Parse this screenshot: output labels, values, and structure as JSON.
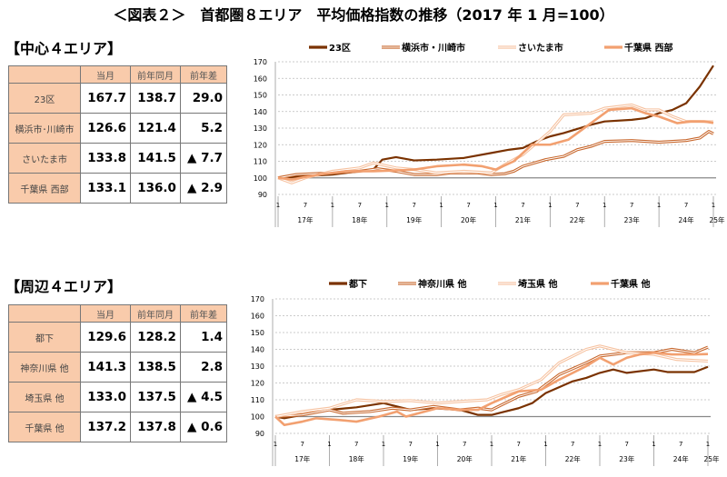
{
  "title": "＜図表２＞　首都圏８エリア　平均価格指数の推移（2017 年 1 月=100）",
  "sections": [
    {
      "heading": "【中心４エリア】",
      "table": {
        "headers": [
          "",
          "当月",
          "前年同月",
          "前年差"
        ],
        "rows": [
          [
            "23区",
            "167.7",
            "138.7",
            "29.0"
          ],
          [
            "横浜市･川崎市",
            "126.6",
            "121.4",
            "5.2"
          ],
          [
            "さいたま市",
            "133.8",
            "141.5",
            "▲ 7.7"
          ],
          [
            "千葉県 西部",
            "133.1",
            "136.0",
            "▲ 2.9"
          ]
        ]
      }
    },
    {
      "heading": "【周辺４エリア】",
      "table": {
        "headers": [
          "",
          "当月",
          "前年同月",
          "前年差"
        ],
        "rows": [
          [
            "都下",
            "129.6",
            "128.2",
            "1.4"
          ],
          [
            "神奈川県 他",
            "141.3",
            "138.5",
            "2.8"
          ],
          [
            "埼玉県 他",
            "133.0",
            "137.5",
            "▲ 4.5"
          ],
          [
            "千葉県 他",
            "137.2",
            "137.8",
            "▲ 0.6"
          ]
        ]
      }
    }
  ],
  "chart_data": [
    {
      "type": "line",
      "ylim": [
        90,
        170
      ],
      "yticks": [
        90,
        100,
        110,
        120,
        130,
        140,
        150,
        160,
        170
      ],
      "grid": true,
      "legend": "top",
      "x_month_labels": [
        "1",
        "7"
      ],
      "x_year_labels": [
        "17年",
        "18年",
        "19年",
        "20年",
        "21年",
        "22年",
        "23年",
        "24年",
        "25年"
      ],
      "x_range": [
        "2017-01",
        "2025-01"
      ],
      "series": [
        {
          "name": "23区",
          "color": "#7a3200",
          "style": "solid",
          "points": [
            [
              "2017-01",
              100
            ],
            [
              "2017-07",
              101
            ],
            [
              "2018-01",
              102
            ],
            [
              "2018-07",
              104
            ],
            [
              "2018-10",
              105
            ],
            [
              "2018-12",
              111
            ],
            [
              "2019-03",
              112.5
            ],
            [
              "2019-07",
              110.5
            ],
            [
              "2019-12",
              111
            ],
            [
              "2020-06",
              112
            ],
            [
              "2020-12",
              115
            ],
            [
              "2021-04",
              117
            ],
            [
              "2021-07",
              118
            ],
            [
              "2021-10",
              122
            ],
            [
              "2022-01",
              125
            ],
            [
              "2022-04",
              127
            ],
            [
              "2022-10",
              132
            ],
            [
              "2023-01",
              134
            ],
            [
              "2023-07",
              135
            ],
            [
              "2023-10",
              136
            ],
            [
              "2024-01",
              139
            ],
            [
              "2024-04",
              141
            ],
            [
              "2024-07",
              145
            ],
            [
              "2024-10",
              155
            ],
            [
              "2025-01",
              167.7
            ]
          ]
        },
        {
          "name": "横浜市・川崎市",
          "color": "#c8682e",
          "style": "double",
          "points": [
            [
              "2017-01",
              100
            ],
            [
              "2017-05",
              102
            ],
            [
              "2018-01",
              103
            ],
            [
              "2018-07",
              104
            ],
            [
              "2018-11",
              105.5
            ],
            [
              "2019-03",
              104
            ],
            [
              "2019-07",
              102
            ],
            [
              "2019-12",
              102
            ],
            [
              "2020-03",
              103
            ],
            [
              "2020-09",
              103
            ],
            [
              "2020-12",
              102
            ],
            [
              "2021-03",
              102.5
            ],
            [
              "2021-05",
              104
            ],
            [
              "2021-07",
              107
            ],
            [
              "2021-12",
              111
            ],
            [
              "2022-04",
              113
            ],
            [
              "2022-07",
              117
            ],
            [
              "2022-10",
              119
            ],
            [
              "2023-01",
              122
            ],
            [
              "2023-07",
              122.5
            ],
            [
              "2024-01",
              121.5
            ],
            [
              "2024-07",
              122.5
            ],
            [
              "2024-10",
              124
            ],
            [
              "2024-12",
              128
            ],
            [
              "2025-01",
              126.6
            ]
          ]
        },
        {
          "name": "さいたま市",
          "color": "#f6c2a0",
          "style": "double",
          "points": [
            [
              "2017-01",
              100
            ],
            [
              "2017-04",
              97
            ],
            [
              "2017-07",
              100
            ],
            [
              "2018-01",
              104
            ],
            [
              "2018-07",
              106
            ],
            [
              "2018-10",
              109
            ],
            [
              "2019-03",
              106
            ],
            [
              "2019-07",
              105
            ],
            [
              "2019-12",
              103
            ],
            [
              "2020-06",
              104
            ],
            [
              "2020-12",
              103
            ],
            [
              "2021-03",
              108
            ],
            [
              "2021-07",
              114
            ],
            [
              "2021-10",
              121
            ],
            [
              "2022-01",
              128
            ],
            [
              "2022-04",
              138
            ],
            [
              "2022-10",
              139
            ],
            [
              "2023-01",
              142
            ],
            [
              "2023-07",
              144
            ],
            [
              "2023-10",
              141
            ],
            [
              "2024-01",
              141
            ],
            [
              "2024-04",
              137
            ],
            [
              "2024-07",
              134
            ],
            [
              "2024-10",
              134
            ],
            [
              "2025-01",
              133.8
            ]
          ]
        },
        {
          "name": "千葉県 西部",
          "color": "#f2a070",
          "style": "solid",
          "points": [
            [
              "2017-01",
              100
            ],
            [
              "2017-04",
              99
            ],
            [
              "2017-10",
              102
            ],
            [
              "2018-04",
              104
            ],
            [
              "2018-10",
              104
            ],
            [
              "2019-03",
              104.5
            ],
            [
              "2019-07",
              105
            ],
            [
              "2019-12",
              107
            ],
            [
              "2020-06",
              108
            ],
            [
              "2020-10",
              107
            ],
            [
              "2021-01",
              105
            ],
            [
              "2021-05",
              110
            ],
            [
              "2021-09",
              120
            ],
            [
              "2022-01",
              120
            ],
            [
              "2022-05",
              123
            ],
            [
              "2022-10",
              133
            ],
            [
              "2023-02",
              141
            ],
            [
              "2023-07",
              142
            ],
            [
              "2023-10",
              139
            ],
            [
              "2024-01",
              137
            ],
            [
              "2024-05",
              133
            ],
            [
              "2024-08",
              134
            ],
            [
              "2024-11",
              134
            ],
            [
              "2025-01",
              133.1
            ]
          ]
        }
      ]
    },
    {
      "type": "line",
      "ylim": [
        90,
        170
      ],
      "yticks": [
        90,
        100,
        110,
        120,
        130,
        140,
        150,
        160,
        170
      ],
      "grid": true,
      "legend": "top",
      "x_month_labels": [
        "1",
        "7"
      ],
      "x_year_labels": [
        "17年",
        "18年",
        "19年",
        "20年",
        "21年",
        "22年",
        "23年",
        "24年",
        "25年"
      ],
      "x_range": [
        "2017-01",
        "2025-01"
      ],
      "series": [
        {
          "name": "都下",
          "color": "#7a3200",
          "style": "solid",
          "points": [
            [
              "2017-01",
              100
            ],
            [
              "2017-03",
              99
            ],
            [
              "2017-07",
              101
            ],
            [
              "2018-01",
              104
            ],
            [
              "2018-07",
              105.5
            ],
            [
              "2019-01",
              108
            ],
            [
              "2019-07",
              104
            ],
            [
              "2019-12",
              105
            ],
            [
              "2020-06",
              104
            ],
            [
              "2020-10",
              101
            ],
            [
              "2021-01",
              101
            ],
            [
              "2021-04",
              103
            ],
            [
              "2021-07",
              105
            ],
            [
              "2021-10",
              108
            ],
            [
              "2022-01",
              114
            ],
            [
              "2022-07",
              121
            ],
            [
              "2022-10",
              123
            ],
            [
              "2023-01",
              126
            ],
            [
              "2023-04",
              128
            ],
            [
              "2023-07",
              126
            ],
            [
              "2024-01",
              128
            ],
            [
              "2024-04",
              126.5
            ],
            [
              "2024-10",
              126.5
            ],
            [
              "2025-01",
              129.6
            ]
          ]
        },
        {
          "name": "神奈川県 他",
          "color": "#c8682e",
          "style": "double",
          "points": [
            [
              "2017-01",
              100
            ],
            [
              "2017-07",
              101
            ],
            [
              "2018-01",
              104
            ],
            [
              "2018-04",
              102
            ],
            [
              "2018-10",
              103
            ],
            [
              "2019-03",
              105
            ],
            [
              "2019-07",
              104
            ],
            [
              "2019-12",
              106
            ],
            [
              "2020-06",
              104
            ],
            [
              "2020-10",
              105
            ],
            [
              "2021-01",
              104
            ],
            [
              "2021-07",
              112
            ],
            [
              "2021-11",
              115
            ],
            [
              "2022-04",
              125
            ],
            [
              "2022-10",
              132
            ],
            [
              "2023-01",
              136
            ],
            [
              "2023-07",
              138
            ],
            [
              "2024-01",
              138
            ],
            [
              "2024-05",
              140
            ],
            [
              "2024-10",
              138
            ],
            [
              "2025-01",
              141.3
            ]
          ]
        },
        {
          "name": "埼玉県 他",
          "color": "#f6c2a0",
          "style": "double",
          "points": [
            [
              "2017-01",
              100
            ],
            [
              "2017-07",
              103
            ],
            [
              "2018-01",
              105
            ],
            [
              "2018-07",
              110
            ],
            [
              "2019-01",
              109
            ],
            [
              "2019-07",
              109.5
            ],
            [
              "2020-01",
              108
            ],
            [
              "2020-06",
              109
            ],
            [
              "2020-12",
              110
            ],
            [
              "2021-03",
              113
            ],
            [
              "2021-07",
              116
            ],
            [
              "2021-12",
              122
            ],
            [
              "2022-04",
              132
            ],
            [
              "2022-10",
              140
            ],
            [
              "2023-01",
              142
            ],
            [
              "2023-07",
              138
            ],
            [
              "2024-01",
              137
            ],
            [
              "2024-06",
              134
            ],
            [
              "2025-01",
              133.0
            ]
          ]
        },
        {
          "name": "千葉県 他",
          "color": "#f2a070",
          "style": "solid",
          "points": [
            [
              "2017-01",
              100
            ],
            [
              "2017-03",
              95
            ],
            [
              "2017-07",
              97
            ],
            [
              "2017-10",
              99
            ],
            [
              "2018-03",
              98
            ],
            [
              "2018-07",
              97
            ],
            [
              "2018-12",
              100
            ],
            [
              "2019-04",
              103
            ],
            [
              "2019-06",
              100
            ],
            [
              "2020-01",
              105
            ],
            [
              "2020-06",
              104
            ],
            [
              "2020-10",
              104
            ],
            [
              "2021-01",
              108
            ],
            [
              "2021-07",
              115
            ],
            [
              "2021-12",
              116
            ],
            [
              "2022-04",
              122
            ],
            [
              "2022-10",
              130
            ],
            [
              "2023-01",
              135
            ],
            [
              "2023-04",
              131
            ],
            [
              "2023-07",
              135
            ],
            [
              "2023-10",
              137
            ],
            [
              "2024-01",
              138
            ],
            [
              "2024-05",
              137
            ],
            [
              "2024-10",
              137
            ],
            [
              "2025-01",
              137.2
            ]
          ]
        }
      ]
    }
  ]
}
